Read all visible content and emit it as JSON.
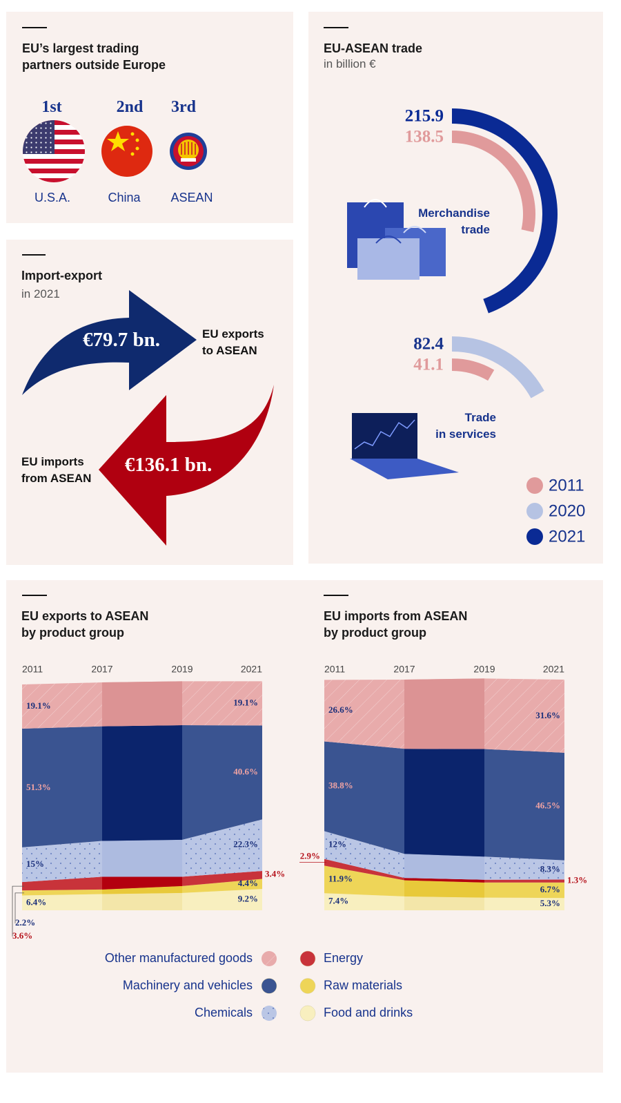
{
  "partners": {
    "title": "EU’s largest trading\npartners outside Europe",
    "items": [
      {
        "rank": "1st",
        "name": "U.S.A."
      },
      {
        "rank": "2nd",
        "name": "China"
      },
      {
        "rank": "3rd",
        "name": "ASEAN"
      }
    ]
  },
  "import_export": {
    "title": "Import-export",
    "subtitle": "in 2021",
    "exports": {
      "amount": "€79.7 bn.",
      "label": "EU exports\nto ASEAN"
    },
    "imports": {
      "amount": "€136.1 bn.",
      "label": "EU imports\nfrom ASEAN"
    }
  },
  "chart_data": [
    {
      "type": "radial_bar",
      "title": "EU-ASEAN trade",
      "subtitle": "in billion €",
      "categories": [
        "Merchandise\ntrade",
        "Trade\nin services"
      ],
      "series": [
        {
          "name": "2011",
          "color": "#e09a9b",
          "values": [
            138.5,
            41.1
          ]
        },
        {
          "name": "2020",
          "color": "#b6c3e3",
          "label_color": "#17338c",
          "values": [
            null,
            82.4
          ]
        },
        {
          "name": "2021",
          "color": "#0a2a94",
          "values": [
            215.9,
            null
          ]
        }
      ]
    },
    {
      "type": "stacked_area",
      "title": "EU exports to ASEAN\nby product group",
      "categories": [
        "2011",
        "2017",
        "2019",
        "2021"
      ],
      "ylim": [
        0,
        100
      ],
      "series": [
        {
          "name": "Other manufactured goods",
          "color": "#e8abab",
          "highlight_color": "#dc9394",
          "pattern": "hatch",
          "label_color": "#1a2f7a",
          "values": [
            19.1,
            19.0,
            19.0,
            19.1
          ],
          "value_labels": [
            "19.1%",
            null,
            null,
            "19.1%"
          ]
        },
        {
          "name": "Machinery and vehicles",
          "color": "#3a5491",
          "highlight_color": "#0b246c",
          "label_color": "#f0a3a3",
          "values": [
            51.3,
            49.5,
            49.5,
            40.6
          ],
          "value_labels": [
            "51.3%",
            null,
            null,
            "40.6%"
          ]
        },
        {
          "name": "Chemicals",
          "color": "#bac6e5",
          "highlight_color": "#adbbe0",
          "pattern": "dots",
          "label_color": "#1a2f7a",
          "values": [
            15,
            15.5,
            16,
            22.3
          ],
          "value_labels": [
            "15%",
            null,
            null,
            "22.3%"
          ]
        },
        {
          "name": "Energy",
          "color": "#c8333a",
          "highlight_color": "#b3000f",
          "label_color": "#b5121b",
          "values": [
            3.6,
            5.5,
            4.0,
            3.4
          ],
          "value_labels": [
            "3.6%",
            null,
            null,
            "3.4%"
          ]
        },
        {
          "name": "Raw materials",
          "color": "#eed558",
          "highlight_color": "#e8c93a",
          "label_color": "#1a2f7a",
          "values": [
            2.2,
            2.0,
            3.0,
            4.4
          ],
          "value_labels": [
            "2.2%",
            null,
            null,
            "4.4%"
          ]
        },
        {
          "name": "Food and drinks",
          "color": "#f8efbf",
          "highlight_color": "#f3e6a9",
          "label_color": "#1a2f7a",
          "values": [
            6.4,
            7.0,
            7.5,
            9.2
          ],
          "value_labels": [
            "6.4%",
            null,
            null,
            "9.2%"
          ]
        }
      ]
    },
    {
      "type": "stacked_area",
      "title": "EU imports from ASEAN\nby product group",
      "categories": [
        "2011",
        "2017",
        "2019",
        "2021"
      ],
      "ylim": [
        0,
        100
      ],
      "series": [
        {
          "color": "#e8abab",
          "highlight_color": "#dc9394",
          "pattern": "hatch",
          "label_color": "#1a2f7a",
          "values": [
            26.6,
            29.9,
            30.5,
            31.6
          ],
          "value_labels": [
            "26.6%",
            null,
            null,
            "31.6%"
          ]
        },
        {
          "color": "#3a5491",
          "highlight_color": "#0b246c",
          "label_color": "#f0a3a3",
          "values": [
            38.8,
            45.4,
            46.5,
            46.5
          ],
          "value_labels": [
            "38.8%",
            null,
            null,
            "46.5%"
          ]
        },
        {
          "color": "#bac6e5",
          "highlight_color": "#adbbe0",
          "pattern": "dots",
          "label_color": "#1a2f7a",
          "values": [
            12,
            10.4,
            10,
            8.3
          ],
          "value_labels": [
            "12%",
            null,
            null,
            "8.3%"
          ]
        },
        {
          "color": "#c8333a",
          "highlight_color": "#b3000f",
          "label_color": "#b5121b",
          "values": [
            2.9,
            1.0,
            1.2,
            1.3
          ],
          "value_labels": [
            "2.9%",
            null,
            null,
            "1.3%"
          ]
        },
        {
          "color": "#eed558",
          "highlight_color": "#e8c93a",
          "label_color": "#1a2f7a",
          "values": [
            11.9,
            7.0,
            6.5,
            6.7
          ],
          "value_labels": [
            "11.9%",
            null,
            null,
            "6.7%"
          ]
        },
        {
          "color": "#f8efbf",
          "highlight_color": "#f3e6a9",
          "label_color": "#1a2f7a",
          "values": [
            7.4,
            6.0,
            5.5,
            5.3
          ],
          "value_labels": [
            "7.4%",
            null,
            null,
            "5.3%"
          ]
        }
      ]
    }
  ]
}
